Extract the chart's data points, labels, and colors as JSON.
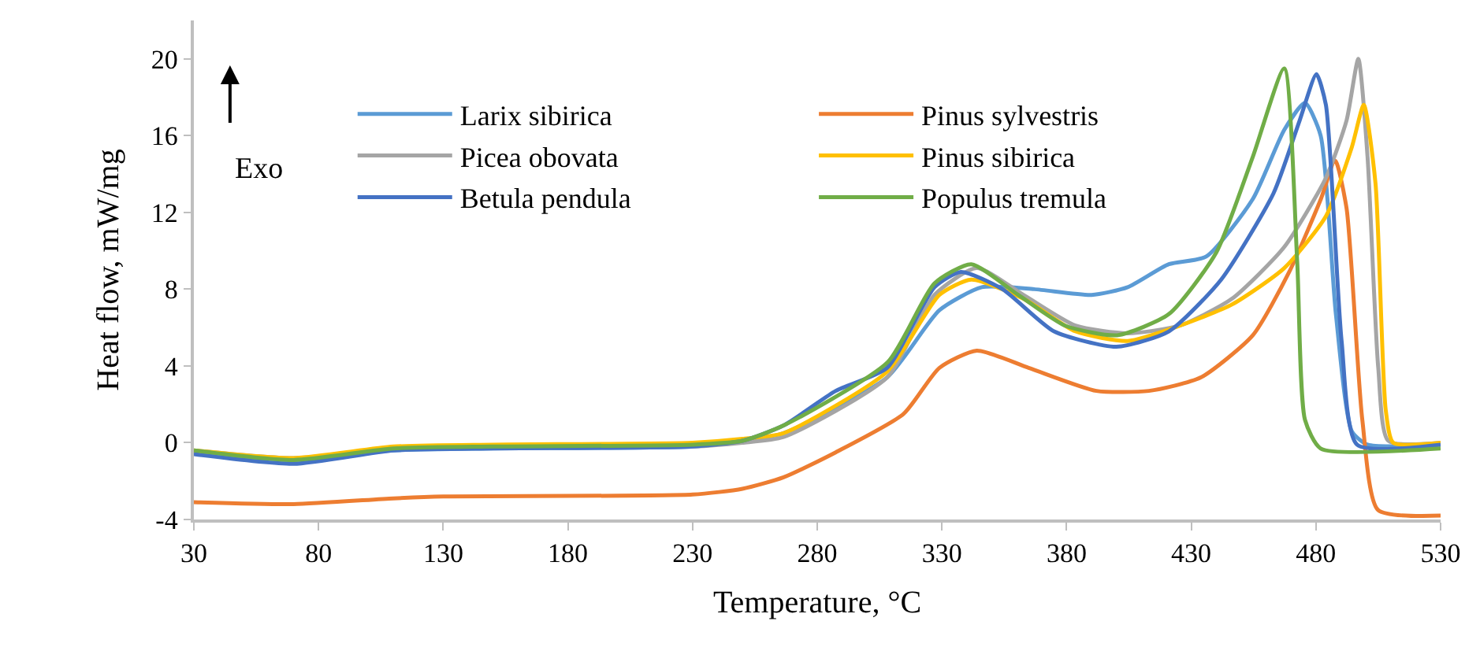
{
  "chart_data": {
    "type": "line",
    "xlabel": "Temperature, °C",
    "ylabel": "Heat flow, mW/mg",
    "xlim": [
      30,
      530
    ],
    "xticks": [
      30,
      80,
      130,
      180,
      230,
      280,
      330,
      380,
      430,
      480,
      530
    ],
    "ylim": [
      -4,
      22
    ],
    "yticks": [
      -4,
      0,
      4,
      8,
      12,
      16,
      20
    ],
    "legend": "top",
    "line_style": "solid",
    "marker": "none",
    "annotations": [
      "Exo"
    ],
    "series": [
      {
        "name": "Larix sibirica",
        "color": "#5b9bd5",
        "x": [
          30,
          70,
          110,
          150,
          230,
          250,
          266.5,
          308,
          329,
          346,
          367,
          390,
          404.5,
          421,
          436,
          454.7,
          467.3,
          475.6,
          481.9,
          488,
          494.4,
          500.7,
          530
        ],
        "values": [
          -0.5,
          -0.9,
          -0.4,
          -0.3,
          -0.2,
          0.1,
          0.5,
          3.4,
          6.9,
          8.1,
          8.0,
          7.7,
          8.1,
          9.3,
          9.7,
          12.7,
          16.3,
          17.7,
          16.0,
          6.7,
          0.6,
          -0.1,
          -0.1
        ]
      },
      {
        "name": "Pinus sylvestris",
        "color": "#ed7d31",
        "x": [
          30,
          70,
          110,
          130,
          230,
          250,
          266.5,
          287.4,
          314.6,
          329,
          344,
          364.8,
          392,
          413,
          433.8,
          454.7,
          469.3,
          482,
          487.7,
          492.3,
          498.6,
          504.9,
          530
        ],
        "values": [
          -3.1,
          -3.2,
          -2.9,
          -2.8,
          -2.7,
          -2.4,
          -1.8,
          -0.5,
          1.5,
          3.9,
          4.8,
          3.9,
          2.7,
          2.7,
          3.4,
          5.6,
          8.9,
          12.7,
          14.7,
          12.2,
          1.2,
          -3.5,
          -3.8
        ]
      },
      {
        "name": "Picea obovata",
        "color": "#a5a5a5",
        "x": [
          30,
          70,
          110,
          150,
          230,
          250,
          266.5,
          308,
          327,
          344,
          362.7,
          383.6,
          404.5,
          425.4,
          446.3,
          467.3,
          484,
          492.3,
          497,
          500.7,
          505,
          509,
          530
        ],
        "values": [
          -0.4,
          -0.8,
          -0.3,
          -0.2,
          -0.2,
          0.0,
          0.3,
          3.4,
          7.7,
          9.1,
          7.7,
          6.1,
          5.7,
          6.1,
          7.5,
          10.2,
          13.8,
          16.8,
          20.0,
          14.9,
          3.9,
          0.1,
          0.0
        ]
      },
      {
        "name": "Pinus sibirica",
        "color": "#ffc000",
        "x": [
          30,
          70,
          110,
          150,
          230,
          250,
          266.5,
          308,
          329,
          341.8,
          362.7,
          383.6,
          404.5,
          425.4,
          446.3,
          467.3,
          484,
          494.4,
          499.2,
          503.9,
          508,
          511,
          530
        ],
        "values": [
          -0.4,
          -0.8,
          -0.2,
          -0.1,
          0.0,
          0.2,
          0.5,
          3.7,
          7.7,
          8.5,
          7.5,
          5.8,
          5.3,
          6.1,
          7.2,
          9.1,
          11.8,
          15.4,
          17.6,
          13.5,
          1.7,
          0.0,
          0.0
        ]
      },
      {
        "name": "Betula pendula",
        "color": "#4472c4",
        "x": [
          30,
          70,
          110,
          150,
          230,
          250,
          266.5,
          287.4,
          308,
          327,
          337.6,
          354.3,
          375,
          400,
          421,
          442,
          463,
          473.5,
          480.2,
          484,
          490.3,
          496.5,
          530
        ],
        "values": [
          -0.6,
          -1.1,
          -0.4,
          -0.3,
          -0.2,
          0.1,
          0.9,
          2.7,
          3.9,
          8.1,
          8.9,
          8.0,
          5.8,
          5.0,
          5.8,
          8.5,
          13.0,
          16.8,
          19.2,
          17.6,
          5.3,
          -0.1,
          -0.1
        ]
      },
      {
        "name": "Populus tremula",
        "color": "#70ad47",
        "x": [
          30,
          70,
          110,
          150,
          230,
          250,
          266.5,
          308.3,
          327,
          341.8,
          360.6,
          379.4,
          400.3,
          421,
          440,
          454.7,
          467.3,
          472.5,
          475.6,
          481.9,
          530
        ],
        "values": [
          -0.4,
          -0.9,
          -0.3,
          -0.2,
          -0.1,
          0.1,
          0.9,
          4.2,
          8.3,
          9.3,
          7.7,
          6.1,
          5.6,
          6.7,
          9.9,
          14.9,
          19.5,
          9.4,
          1.2,
          -0.3,
          -0.3
        ]
      }
    ]
  }
}
